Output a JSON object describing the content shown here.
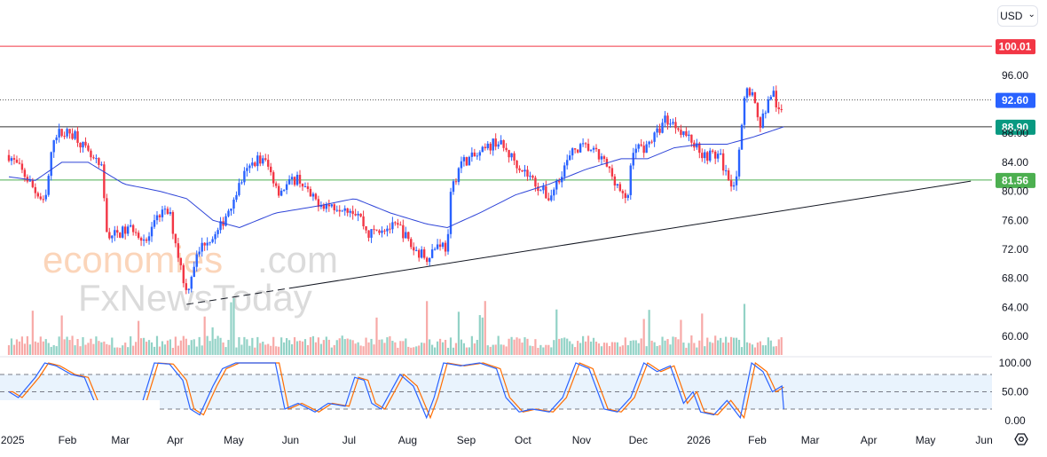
{
  "currency_selector": {
    "label": "USD",
    "chevron": "⌄"
  },
  "watermark": {
    "line1a": "economies",
    "line1b": ".com",
    "line2": "FxNewsToday"
  },
  "chart_data": {
    "type": "candlestick",
    "title": "",
    "day_origin": "2025-01-01",
    "x_ticks": [
      {
        "day": 2,
        "label": "2025"
      },
      {
        "day": 31,
        "label": "Feb"
      },
      {
        "day": 59,
        "label": "Mar"
      },
      {
        "day": 88,
        "label": "Apr"
      },
      {
        "day": 119,
        "label": "May"
      },
      {
        "day": 149,
        "label": "Jun"
      },
      {
        "day": 180,
        "label": "Jul"
      },
      {
        "day": 211,
        "label": "Aug"
      },
      {
        "day": 242,
        "label": "Sep"
      },
      {
        "day": 272,
        "label": "Oct"
      },
      {
        "day": 303,
        "label": "Nov"
      },
      {
        "day": 333,
        "label": "Dec"
      },
      {
        "day": 365,
        "label": "2026"
      },
      {
        "day": 396,
        "label": "Feb"
      },
      {
        "day": 424,
        "label": "Mar"
      },
      {
        "day": 455,
        "label": "Apr"
      },
      {
        "day": 485,
        "label": "May"
      },
      {
        "day": 516,
        "label": "Jun"
      }
    ],
    "y_ticks": [
      "96.00",
      "92.00",
      "88.00",
      "84.00",
      "80.00",
      "76.00",
      "72.00",
      "68.00",
      "64.00",
      "60.00"
    ],
    "ylim": [
      60,
      100.01
    ],
    "price_path": [
      [
        0,
        85
      ],
      [
        9,
        82
      ],
      [
        14,
        80
      ],
      [
        19,
        78
      ],
      [
        24,
        88
      ],
      [
        28,
        88
      ],
      [
        35,
        88
      ],
      [
        42,
        85
      ],
      [
        49,
        83
      ],
      [
        52,
        74
      ],
      [
        56,
        74
      ],
      [
        66,
        75
      ],
      [
        73,
        73
      ],
      [
        80,
        77
      ],
      [
        85,
        77
      ],
      [
        89,
        72
      ],
      [
        94,
        66
      ],
      [
        98,
        70
      ],
      [
        103,
        73
      ],
      [
        110,
        74
      ],
      [
        117,
        78
      ],
      [
        124,
        82
      ],
      [
        131,
        84.5
      ],
      [
        136,
        84
      ],
      [
        143,
        80
      ],
      [
        153,
        82
      ],
      [
        160,
        79
      ],
      [
        169,
        78
      ],
      [
        178,
        78
      ],
      [
        185,
        77
      ],
      [
        190,
        74
      ],
      [
        197,
        75
      ],
      [
        207,
        75
      ],
      [
        214,
        72
      ],
      [
        221,
        71
      ],
      [
        228,
        73
      ],
      [
        232,
        72
      ],
      [
        234,
        80
      ],
      [
        239,
        84
      ],
      [
        249,
        85
      ],
      [
        258,
        87
      ],
      [
        265,
        85
      ],
      [
        272,
        83
      ],
      [
        279,
        81
      ],
      [
        286,
        79
      ],
      [
        293,
        83
      ],
      [
        300,
        86
      ],
      [
        307,
        86
      ],
      [
        315,
        84
      ],
      [
        322,
        81
      ],
      [
        327,
        78
      ],
      [
        330,
        86
      ],
      [
        336,
        86
      ],
      [
        343,
        88
      ],
      [
        347,
        90
      ],
      [
        354,
        89
      ],
      [
        361,
        87
      ],
      [
        368,
        85
      ],
      [
        376,
        85
      ],
      [
        380,
        82
      ],
      [
        384,
        81
      ],
      [
        387,
        86
      ],
      [
        390,
        95
      ],
      [
        394,
        93
      ],
      [
        397,
        89
      ],
      [
        400,
        91
      ],
      [
        404,
        94
      ],
      [
        408,
        90
      ],
      [
        410,
        92.6
      ]
    ],
    "moving_average": [
      [
        0,
        82
      ],
      [
        14,
        81.5
      ],
      [
        28,
        84
      ],
      [
        42,
        84
      ],
      [
        61,
        81
      ],
      [
        80,
        80
      ],
      [
        94,
        79
      ],
      [
        108,
        76
      ],
      [
        122,
        75
      ],
      [
        141,
        77
      ],
      [
        164,
        78
      ],
      [
        183,
        79
      ],
      [
        202,
        77
      ],
      [
        221,
        75.5
      ],
      [
        232,
        75
      ],
      [
        249,
        77
      ],
      [
        268,
        79.5
      ],
      [
        286,
        81
      ],
      [
        305,
        83
      ],
      [
        324,
        84.5
      ],
      [
        338,
        84.5
      ],
      [
        352,
        86
      ],
      [
        366,
        86.5
      ],
      [
        380,
        86.5
      ],
      [
        394,
        87.5
      ],
      [
        410,
        88.9
      ]
    ],
    "trendline": {
      "from": [
        94,
        64.4
      ],
      "to": [
        509,
        81.4
      ]
    },
    "levels": [
      {
        "value": 100.01,
        "label": "100.01",
        "color": "#f23645",
        "style": "solid"
      },
      {
        "value": 92.6,
        "label": "92.60",
        "color": "#2962ff",
        "style": "dotted"
      },
      {
        "value": 88.9,
        "label": "88.90",
        "color": "#089981",
        "style": "solid"
      },
      {
        "value": 81.56,
        "label": "81.56",
        "color": "#4caf50",
        "style": "solid"
      }
    ],
    "stochastic": {
      "y_ticks": [
        "100.00",
        "50.00",
        "0.00"
      ],
      "band": [
        20,
        80
      ],
      "k": [
        [
          0,
          50
        ],
        [
          5,
          40
        ],
        [
          14,
          75
        ],
        [
          19,
          100
        ],
        [
          25,
          95
        ],
        [
          33,
          80
        ],
        [
          40,
          75
        ],
        [
          45,
          35
        ],
        [
          49,
          20
        ],
        [
          61,
          20
        ],
        [
          70,
          25
        ],
        [
          77,
          100
        ],
        [
          85,
          98
        ],
        [
          92,
          70
        ],
        [
          96,
          20
        ],
        [
          101,
          10
        ],
        [
          108,
          60
        ],
        [
          113,
          90
        ],
        [
          120,
          100
        ],
        [
          141,
          100
        ],
        [
          146,
          20
        ],
        [
          153,
          30
        ],
        [
          162,
          15
        ],
        [
          169,
          30
        ],
        [
          178,
          25
        ],
        [
          183,
          75
        ],
        [
          188,
          70
        ],
        [
          192,
          30
        ],
        [
          197,
          20
        ],
        [
          207,
          80
        ],
        [
          214,
          60
        ],
        [
          221,
          5
        ],
        [
          225,
          40
        ],
        [
          230,
          100
        ],
        [
          239,
          95
        ],
        [
          249,
          100
        ],
        [
          258,
          90
        ],
        [
          263,
          40
        ],
        [
          270,
          15
        ],
        [
          277,
          20
        ],
        [
          286,
          15
        ],
        [
          293,
          40
        ],
        [
          300,
          100
        ],
        [
          307,
          90
        ],
        [
          315,
          20
        ],
        [
          322,
          15
        ],
        [
          329,
          40
        ],
        [
          336,
          100
        ],
        [
          343,
          85
        ],
        [
          350,
          95
        ],
        [
          357,
          30
        ],
        [
          362,
          50
        ],
        [
          366,
          15
        ],
        [
          373,
          10
        ],
        [
          380,
          35
        ],
        [
          387,
          5
        ],
        [
          393,
          100
        ],
        [
          399,
          85
        ],
        [
          404,
          50
        ],
        [
          409,
          60
        ],
        [
          410,
          20
        ]
      ]
    },
    "colors": {
      "up": "#2962ff",
      "down": "#f23645",
      "ma": "#2f45d8",
      "vol_up": "#92d2c6",
      "vol_down": "#f7a9a7",
      "stoch_k": "#2962ff",
      "stoch_d": "#ff6d00"
    }
  }
}
